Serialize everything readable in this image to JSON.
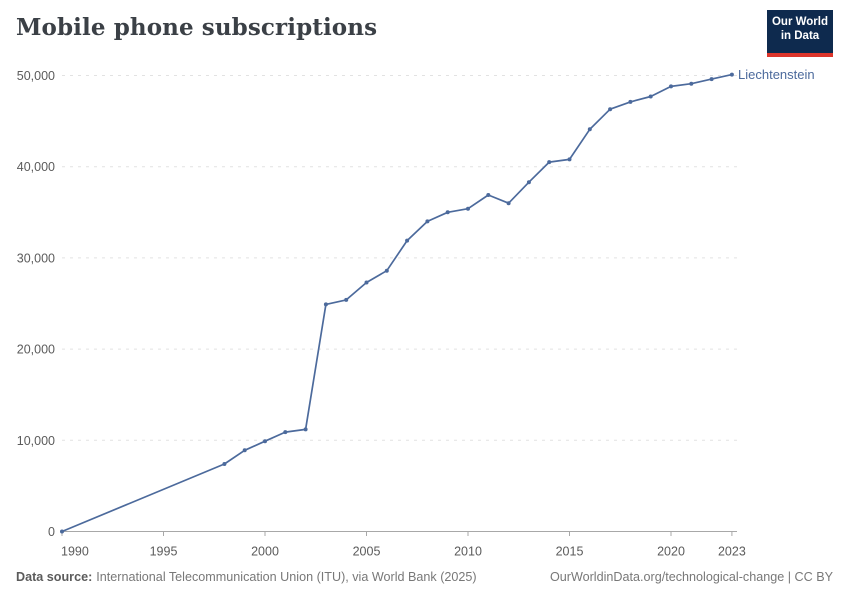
{
  "header": {
    "title": "Mobile phone subscriptions"
  },
  "logo": {
    "line1": "Our World",
    "line2": "in Data",
    "bg_color": "#0e2a4e",
    "accent_color": "#dd352b"
  },
  "chart_data": {
    "type": "line",
    "title": "Mobile phone subscriptions",
    "xlabel": "",
    "ylabel": "",
    "xlim": [
      1990,
      2023.3
    ],
    "ylim": [
      0,
      50000
    ],
    "grid": "horizontal-dashed",
    "legend_position": "end-of-line",
    "x_ticks": [
      1990,
      1995,
      2000,
      2005,
      2010,
      2015,
      2020,
      2023
    ],
    "y_ticks": [
      0,
      10000,
      20000,
      30000,
      40000,
      50000
    ],
    "series": [
      {
        "name": "Liechtenstein",
        "color": "#4c6a9c",
        "points": [
          [
            1990,
            0
          ],
          [
            1998,
            7400
          ],
          [
            1999,
            8900
          ],
          [
            2000,
            9900
          ],
          [
            2001,
            10900
          ],
          [
            2002,
            11200
          ],
          [
            2003,
            24900
          ],
          [
            2004,
            25400
          ],
          [
            2005,
            27300
          ],
          [
            2006,
            28600
          ],
          [
            2007,
            31900
          ],
          [
            2008,
            34000
          ],
          [
            2009,
            35000
          ],
          [
            2010,
            35400
          ],
          [
            2011,
            36900
          ],
          [
            2012,
            36000
          ],
          [
            2013,
            38300
          ],
          [
            2014,
            40500
          ],
          [
            2015,
            40800
          ],
          [
            2016,
            44100
          ],
          [
            2017,
            46300
          ],
          [
            2018,
            47100
          ],
          [
            2019,
            47700
          ],
          [
            2020,
            48800
          ],
          [
            2021,
            49100
          ],
          [
            2022,
            49600
          ],
          [
            2023,
            50100
          ]
        ]
      }
    ],
    "theme": {
      "line_color": "#4c6a9c",
      "grid_color": "#e2e2e2",
      "axis_color": "#a8a8a8",
      "tick_text_color": "#5b5b5b"
    }
  },
  "footer": {
    "source_label": "Data source:",
    "source_text": "International Telecommunication Union (ITU), via World Bank (2025)",
    "credit": "OurWorldinData.org/technological-change | CC BY"
  }
}
